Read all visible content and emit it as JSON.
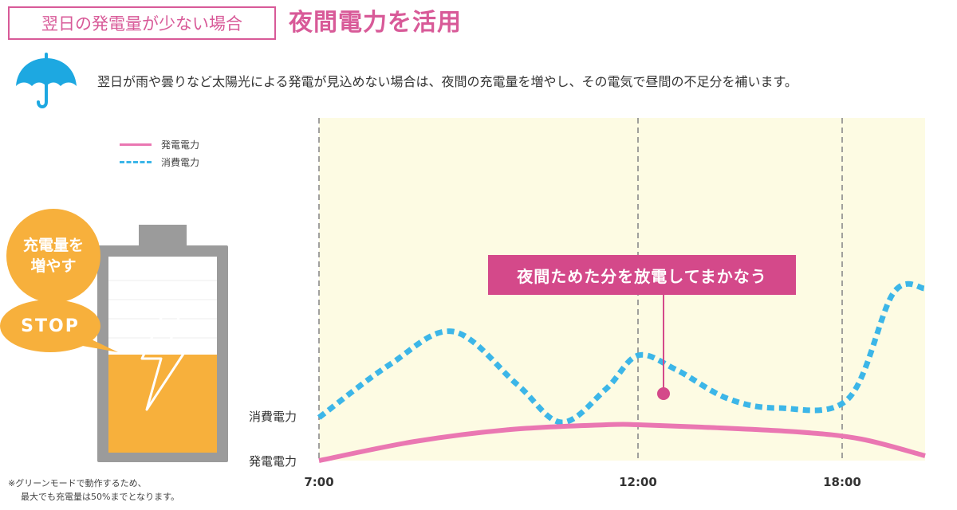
{
  "header": {
    "tag_label": "翌日の発電量が少ない場合",
    "headline": "夜間電力を活用"
  },
  "intro": {
    "icon": "umbrella-icon",
    "text": "翌日が雨や曇りなど太陽光による発電が見込めない場合は、夜間の充電量を増やし、その電気で昼間の不足分を補います。"
  },
  "legend": {
    "generation": "発電電力",
    "consumption": "消費電力"
  },
  "battery_panel": {
    "increase_bubble": "充電量を増やす",
    "stop_bubble": "STOP",
    "charge_level_percent": 50,
    "note_lines": [
      "※グリーンモードで動作するため、",
      "最大でも充電量は50%までとなります。"
    ]
  },
  "colors": {
    "accent_pink": "#d85a98",
    "generation_line": "#ea77b2",
    "consumption_line": "#3cb6e8",
    "bubble_orange": "#f7b03c",
    "battery_gray": "#9b9b9b",
    "chart_bg": "#fdfbe3"
  },
  "chart_data": {
    "type": "line",
    "title": "",
    "xlabel": "",
    "ylabel": "",
    "x_ticks": [
      "7:00",
      "12:00",
      "18:00"
    ],
    "x_range": [
      7,
      16.5
    ],
    "y_labels": [
      "消費電力",
      "発電電力"
    ],
    "callout": "夜間ためた分を放電してまかなう",
    "grid_x": true,
    "series": [
      {
        "name": "消費電力",
        "style": "dashed",
        "x": [
          7,
          8.1,
          9.1,
          10.1,
          10.8,
          11.5,
          12,
          12.6,
          13.4,
          14.2,
          15.3,
          16,
          16.5
        ],
        "y": [
          9,
          20,
          27,
          16,
          8,
          15,
          22,
          19,
          13,
          11,
          13,
          35,
          36
        ]
      },
      {
        "name": "発電電力",
        "style": "solid",
        "x": [
          7,
          8.5,
          10,
          11.5,
          12,
          13,
          14.5,
          15.5,
          16.5
        ],
        "y": [
          0,
          4,
          6.5,
          7.5,
          7.5,
          7,
          6,
          4.5,
          1
        ]
      }
    ],
    "markers": [
      {
        "x": 12.4,
        "y": 14
      }
    ]
  }
}
